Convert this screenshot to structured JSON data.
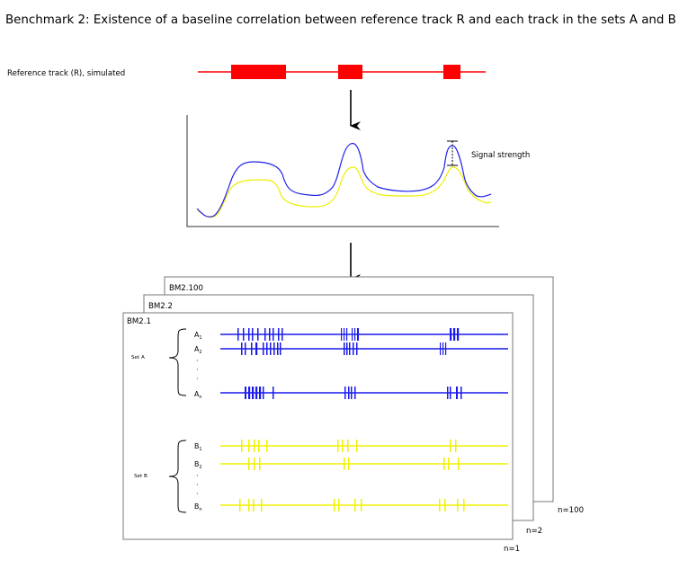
{
  "title": "Benchmark 2: Existence of a baseline correlation between reference track R and each track in the sets A and B",
  "reference": {
    "label": "Reference track (R), simulated",
    "color": "#ff0000"
  },
  "signal": {
    "annotation": "Signal strength",
    "primary_color": "#2222ee",
    "secondary_color": "#eeee00"
  },
  "pages": {
    "back_label": "BM2.100",
    "middle_label": "BM2.2",
    "front_label": "BM2.1",
    "back_n": "n=100",
    "middle_n": "n=2",
    "front_n": "n=1"
  },
  "set_a": {
    "label": "Set A",
    "color": "#1a1aee",
    "tracks": [
      {
        "name": "A",
        "sub": "1"
      },
      {
        "name": "A",
        "sub": "2"
      },
      {
        "name": "A",
        "sub": "n"
      }
    ]
  },
  "set_b": {
    "label": "Set B",
    "color": "#f0f000",
    "tracks": [
      {
        "name": "B",
        "sub": "1"
      },
      {
        "name": "B",
        "sub": "2"
      },
      {
        "name": "B",
        "sub": "n"
      }
    ]
  },
  "ellipsis": "·"
}
